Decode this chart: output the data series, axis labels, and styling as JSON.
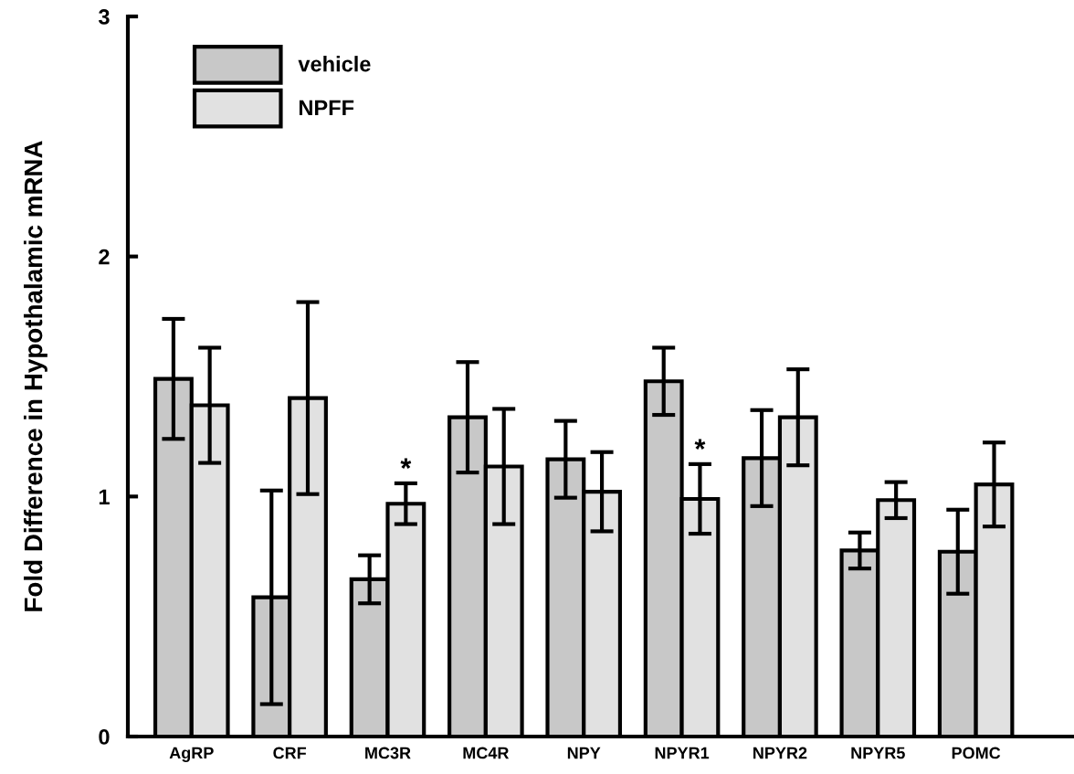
{
  "chart_data": {
    "type": "bar",
    "ylabel": "Fold Difference in Hypothalamic mRNA",
    "categories": [
      "AgRP",
      "CRF",
      "MC3R",
      "MC4R",
      "NPY",
      "NPYR1",
      "NPYR2",
      "NPYR5",
      "POMC"
    ],
    "series": [
      {
        "name": "vehicle",
        "color": "#c8c8c8",
        "values": [
          1.49,
          0.58,
          0.655,
          1.33,
          1.155,
          1.48,
          1.16,
          0.775,
          0.77
        ],
        "errors": [
          0.25,
          0.445,
          0.1,
          0.23,
          0.16,
          0.14,
          0.2,
          0.075,
          0.175
        ]
      },
      {
        "name": "NPFF",
        "color": "#e1e1e1",
        "values": [
          1.38,
          1.41,
          0.97,
          1.125,
          1.02,
          0.99,
          1.33,
          0.985,
          1.05
        ],
        "errors": [
          0.24,
          0.4,
          0.085,
          0.24,
          0.165,
          0.145,
          0.2,
          0.075,
          0.175
        ]
      }
    ],
    "annotations": [
      {
        "text": "*",
        "x": "MC3R",
        "y": 0.97
      },
      {
        "text": "*",
        "x": "NPYR1",
        "y": 0.99
      }
    ],
    "ylim": [
      0,
      3
    ],
    "yticks": [
      0,
      1,
      2,
      3
    ],
    "grid": false,
    "legend": "top left"
  }
}
